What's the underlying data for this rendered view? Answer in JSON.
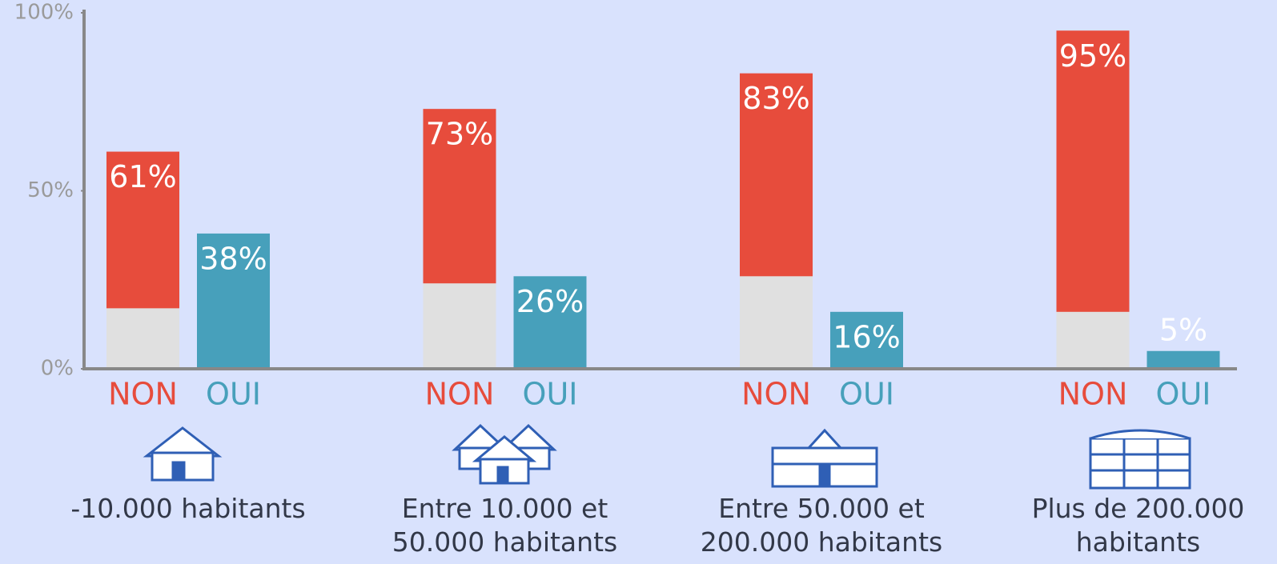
{
  "chart_data": {
    "type": "bar",
    "categories": [
      "-10.000 habitants",
      "Entre 10.000 et 50.000 habitants",
      "Entre 50.000 et 200.000 habitants",
      "Plus de 200.000 habitants"
    ],
    "series": [
      {
        "name": "NON",
        "color": "#e74c3c",
        "values": [
          61,
          73,
          83,
          95
        ],
        "value_labels": [
          "61%",
          "73%",
          "83%",
          "95%"
        ]
      },
      {
        "name": "OUI",
        "color": "#47a0bb",
        "values": [
          38,
          26,
          16,
          5
        ],
        "value_labels": [
          "38%",
          "26%",
          "16%",
          "5%"
        ]
      }
    ],
    "base_overlay": {
      "color": "#e0e0e0",
      "values": [
        17,
        24,
        26,
        16
      ]
    },
    "ylim": [
      0,
      100
    ],
    "yticks": [
      {
        "value": 0,
        "label": "0%"
      },
      {
        "value": 50,
        "label": "50%"
      },
      {
        "value": 100,
        "label": "100%"
      }
    ],
    "grid": false
  }
}
